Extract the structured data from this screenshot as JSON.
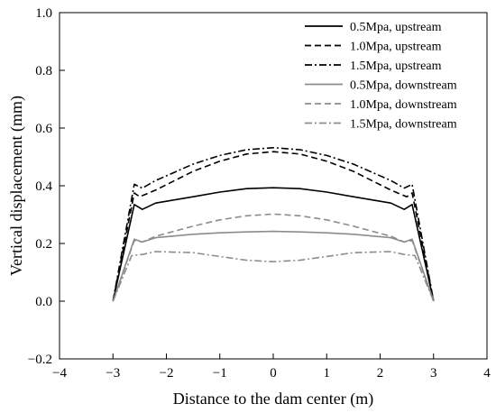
{
  "chart_data": {
    "type": "line",
    "xlabel": "Distance to the dam center (m)",
    "ylabel": "Vertical displacement (mm)",
    "xlim": [
      -4,
      4
    ],
    "ylim": [
      -0.2,
      1.0
    ],
    "xticks": [
      "−4",
      "−3",
      "−2",
      "−1",
      "0",
      "1",
      "2",
      "3",
      "4"
    ],
    "yticks": [
      "−0.2",
      "0.0",
      "0.2",
      "0.4",
      "0.6",
      "0.8",
      "1.0"
    ],
    "grid": false,
    "legend_position": "top-right",
    "series": [
      {
        "name": "0.5Mpa, upstream",
        "color": "#000000",
        "dash": "solid",
        "x": [
          -3,
          -2.6,
          -2.45,
          -2.2,
          -1.5,
          -1,
          -0.5,
          0,
          0.5,
          1,
          1.5,
          2.2,
          2.45,
          2.6,
          3
        ],
        "y": [
          0.0,
          0.335,
          0.318,
          0.34,
          0.362,
          0.378,
          0.39,
          0.393,
          0.39,
          0.378,
          0.362,
          0.34,
          0.318,
          0.335,
          0.0
        ]
      },
      {
        "name": "1.0Mpa, upstream",
        "color": "#000000",
        "dash": "dashed",
        "x": [
          -3,
          -2.6,
          -2.5,
          -2.2,
          -1.5,
          -1,
          -0.5,
          0,
          0.5,
          1,
          1.5,
          2.2,
          2.5,
          2.6,
          3
        ],
        "y": [
          0.0,
          0.375,
          0.362,
          0.385,
          0.45,
          0.485,
          0.51,
          0.518,
          0.51,
          0.485,
          0.45,
          0.385,
          0.362,
          0.375,
          0.0
        ]
      },
      {
        "name": "1.5Mpa, upstream",
        "color": "#000000",
        "dash": "dashdot",
        "x": [
          -3,
          -2.6,
          -2.45,
          -2.2,
          -1.5,
          -1,
          -0.5,
          0,
          0.5,
          1,
          1.5,
          2.2,
          2.45,
          2.6,
          3
        ],
        "y": [
          0.0,
          0.405,
          0.392,
          0.418,
          0.475,
          0.505,
          0.525,
          0.532,
          0.525,
          0.505,
          0.475,
          0.418,
          0.392,
          0.405,
          0.0
        ]
      },
      {
        "name": "0.5Mpa, downstream",
        "color": "#8c8c8c",
        "dash": "solid",
        "x": [
          -3,
          -2.6,
          -2.45,
          -2.2,
          -1.5,
          -1,
          -0.5,
          0,
          0.5,
          1,
          1.5,
          2.2,
          2.45,
          2.6,
          3
        ],
        "y": [
          0.0,
          0.215,
          0.205,
          0.22,
          0.232,
          0.237,
          0.24,
          0.242,
          0.24,
          0.237,
          0.232,
          0.22,
          0.205,
          0.215,
          0.0
        ]
      },
      {
        "name": "1.0Mpa, downstream",
        "color": "#8c8c8c",
        "dash": "dashed",
        "x": [
          -3,
          -2.6,
          -2.45,
          -2.2,
          -1.5,
          -1,
          -0.5,
          0,
          0.5,
          1,
          1.5,
          2.2,
          2.45,
          2.6,
          3
        ],
        "y": [
          0.0,
          0.21,
          0.205,
          0.225,
          0.26,
          0.282,
          0.296,
          0.302,
          0.296,
          0.282,
          0.26,
          0.225,
          0.205,
          0.21,
          0.0
        ]
      },
      {
        "name": "1.5Mpa, downstream",
        "color": "#8c8c8c",
        "dash": "dashdot",
        "x": [
          -3,
          -2.65,
          -2.45,
          -2.2,
          -1.5,
          -1,
          -0.5,
          0,
          0.5,
          1,
          1.5,
          2.2,
          2.45,
          2.65,
          3
        ],
        "y": [
          0.0,
          0.158,
          0.162,
          0.172,
          0.168,
          0.155,
          0.142,
          0.137,
          0.142,
          0.155,
          0.168,
          0.172,
          0.162,
          0.158,
          0.0
        ]
      }
    ]
  }
}
